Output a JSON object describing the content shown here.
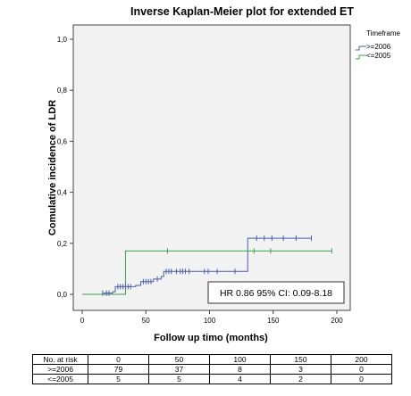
{
  "chart_data": {
    "type": "line",
    "step": true,
    "title": "Inverse Kaplan-Meier plot for extended ET",
    "xlabel": "Follow up timo (months)",
    "ylabel": "Comulative incidence of LDR",
    "xlim": [
      0,
      200
    ],
    "ylim": [
      0,
      1
    ],
    "x_ticks": [
      0,
      50,
      100,
      150,
      200
    ],
    "x_tick_labels": [
      "0",
      "50",
      "100",
      "150",
      "200"
    ],
    "y_ticks": [
      0,
      0.2,
      0.4,
      0.6,
      0.8,
      1.0
    ],
    "y_tick_labels": [
      "0,0",
      "0,2",
      "0,4",
      "0,6",
      "0,8",
      "1,0"
    ],
    "grid": false,
    "legend": {
      "title": "Timeframe",
      "placement": "right",
      "entries": [
        ">=2006",
        "<=2005"
      ]
    },
    "series": [
      {
        "name": ">=2006",
        "color": "#4a5ea8",
        "steps": [
          [
            0,
            0
          ],
          [
            17,
            0.005
          ],
          [
            24,
            0.01
          ],
          [
            26,
            0.03
          ],
          [
            42,
            0.035
          ],
          [
            46,
            0.05
          ],
          [
            56,
            0.06
          ],
          [
            62,
            0.07
          ],
          [
            64,
            0.09
          ],
          [
            91,
            0.09
          ],
          [
            130,
            0.22
          ],
          [
            180,
            0.22
          ]
        ],
        "censored": [
          [
            16,
            0.005
          ],
          [
            19,
            0.005
          ],
          [
            21,
            0.005
          ],
          [
            28,
            0.03
          ],
          [
            30,
            0.03
          ],
          [
            32,
            0.03
          ],
          [
            34,
            0.03
          ],
          [
            36,
            0.03
          ],
          [
            38,
            0.03
          ],
          [
            48,
            0.05
          ],
          [
            50,
            0.05
          ],
          [
            52,
            0.05
          ],
          [
            54,
            0.05
          ],
          [
            59,
            0.06
          ],
          [
            66,
            0.09
          ],
          [
            68,
            0.09
          ],
          [
            70,
            0.09
          ],
          [
            74,
            0.09
          ],
          [
            77,
            0.09
          ],
          [
            79,
            0.09
          ],
          [
            81,
            0.09
          ],
          [
            84,
            0.09
          ],
          [
            96,
            0.09
          ],
          [
            99,
            0.09
          ],
          [
            106,
            0.09
          ],
          [
            120,
            0.09
          ],
          [
            137,
            0.22
          ],
          [
            143,
            0.22
          ],
          [
            149,
            0.22
          ],
          [
            158,
            0.22
          ],
          [
            168,
            0.22
          ],
          [
            180,
            0.22
          ]
        ]
      },
      {
        "name": "<=2005",
        "color": "#3aa34a",
        "steps": [
          [
            0,
            0
          ],
          [
            34,
            0.17
          ],
          [
            196,
            0.17
          ]
        ],
        "censored": [
          [
            67,
            0.17
          ],
          [
            135,
            0.17
          ],
          [
            148,
            0.17
          ],
          [
            196,
            0.17
          ]
        ]
      }
    ],
    "annotation": "HR 0.86 95% CI: 0.09-8.18"
  },
  "risk_table": {
    "header": [
      "No. at risk",
      "0",
      "50",
      "100",
      "150",
      "200"
    ],
    "rows": [
      [
        ">=2006",
        "79",
        "37",
        "8",
        "3",
        "0"
      ],
      [
        "<=2005",
        "5",
        "5",
        "4",
        "2",
        "0"
      ]
    ]
  }
}
